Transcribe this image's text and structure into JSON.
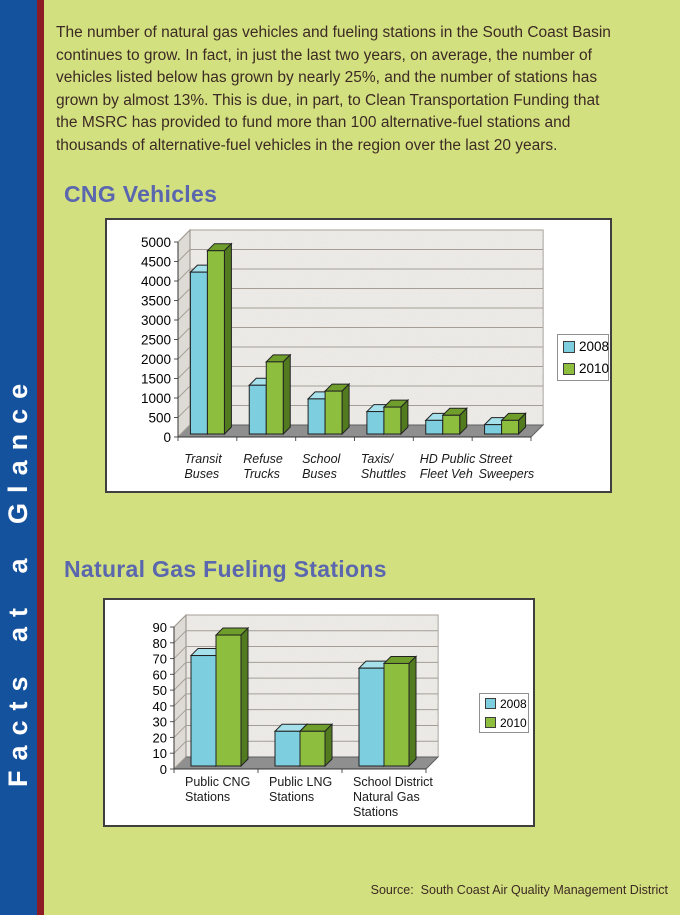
{
  "page": {
    "background": "#d3e07f",
    "stripe_blue": "#15529d",
    "stripe_maroon": "#8c1b23",
    "heading_color": "#5a66ad",
    "body_text_color": "#3c2a24"
  },
  "sidebar": {
    "label": "Facts at a Glance"
  },
  "intro": {
    "text": "The number of natural gas vehicles and fueling stations in the South Coast Basin\ncontinues to grow. In fact, in just the last two years, on average, the number of\nvehicles listed below has grown by nearly 25%, and the number of stations has\ngrown by almost 13%. This is due, in part, to Clean Transportation Funding that\nthe MSRC has provided to fund more than 100 alternative-fuel stations and\nthousands of alternative-fuel vehicles in the region over the last 20 years."
  },
  "footer": {
    "source": "Source:  South Coast Air Quality Management District"
  },
  "chart_data": [
    {
      "type": "bar",
      "style": "3d-clustered",
      "title": "CNG Vehicles",
      "xlabel": "",
      "ylabel": "",
      "ylim": [
        0,
        5000
      ],
      "ystep": 500,
      "grid": true,
      "legend_position": "right",
      "categories": [
        "Transit\nBuses",
        "Refuse\nTrucks",
        "School\nBuses",
        "Taxis/\nShuttles",
        "HD Public\nFleet Veh",
        "Street\nSweepers"
      ],
      "series": [
        {
          "name": "2008",
          "color": "#7dcfe0",
          "top": "#a5e0eb",
          "side": "#4a99ad",
          "values": [
            4150,
            1250,
            900,
            575,
            350,
            240
          ]
        },
        {
          "name": "2010",
          "color": "#8ebe3d",
          "top": "#6f9e2c",
          "side": "#527b20",
          "values": [
            4700,
            1850,
            1100,
            690,
            480,
            350
          ]
        }
      ]
    },
    {
      "type": "bar",
      "style": "3d-clustered",
      "title": "Natural Gas Fueling Stations",
      "xlabel": "",
      "ylabel": "",
      "ylim": [
        0,
        90
      ],
      "ystep": 10,
      "grid": true,
      "legend_position": "right",
      "categories": [
        "Public CNG\nStations",
        "Public LNG\nStations",
        "School District\nNatural Gas\nStations"
      ],
      "series": [
        {
          "name": "2008",
          "color": "#7dcfe0",
          "top": "#a5e0eb",
          "side": "#4a99ad",
          "values": [
            70,
            22,
            62
          ]
        },
        {
          "name": "2010",
          "color": "#8ebe3d",
          "top": "#6f9e2c",
          "side": "#527b20",
          "values": [
            83,
            22,
            65
          ]
        }
      ]
    }
  ]
}
